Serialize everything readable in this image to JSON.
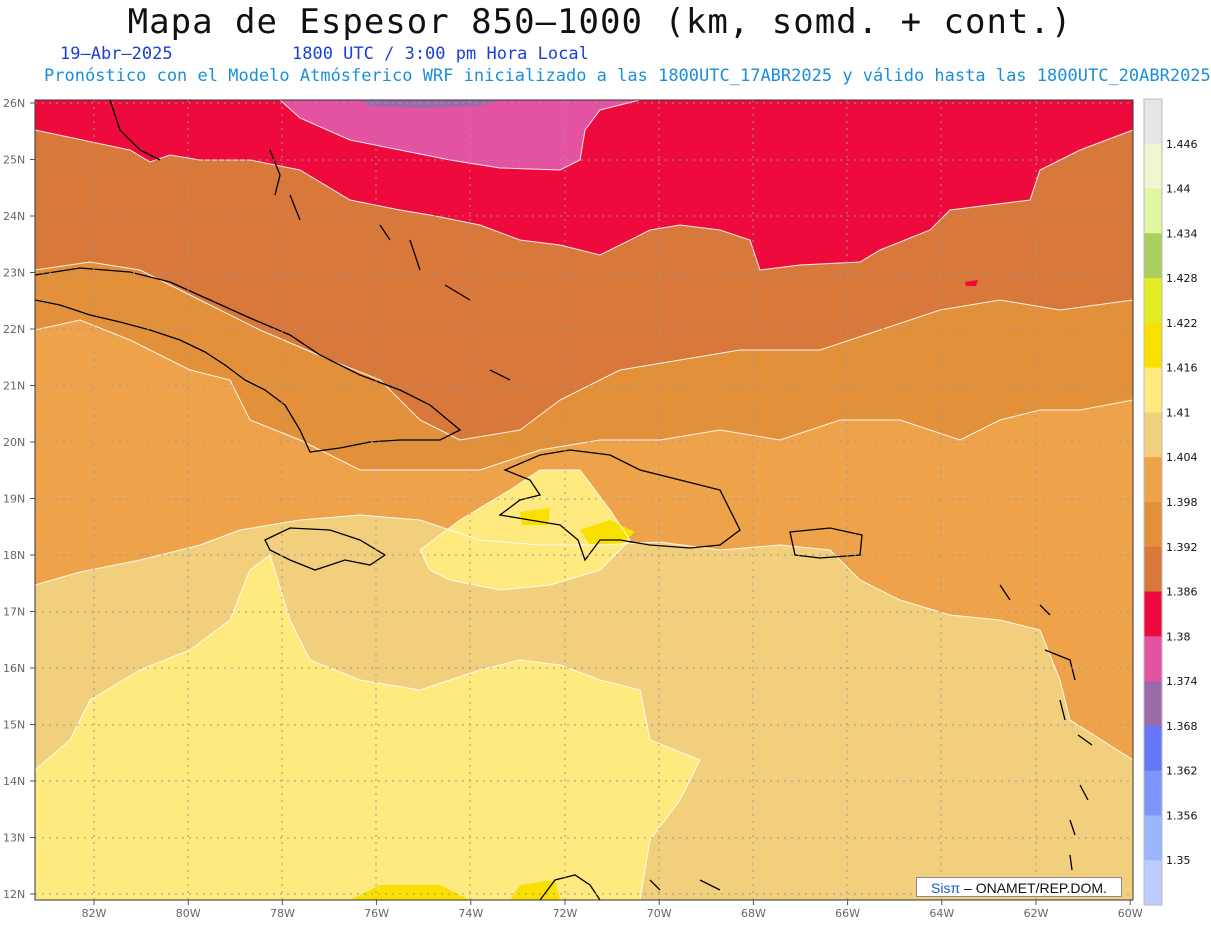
{
  "header": {
    "title": "Mapa de Espesor 850–1000 (km, somd. + cont.)",
    "date": "19–Abr–2025",
    "time": "1800 UTC / 3:00 pm Hora Local",
    "forecast": "Pronóstico con el Modelo Atmósferico WRF inicializado a las 1800UTC_17ABR2025 y válido hasta las  1800UTC_20ABR2025"
  },
  "map": {
    "lat_labels": [
      "26N",
      "25N",
      "24N",
      "23N",
      "22N",
      "21N",
      "20N",
      "19N",
      "18N",
      "17N",
      "16N",
      "15N",
      "14N",
      "13N",
      "12N"
    ],
    "lon_labels": [
      "82W",
      "80W",
      "78W",
      "76W",
      "74W",
      "72W",
      "70W",
      "68W",
      "66W",
      "64W",
      "62W",
      "60W"
    ],
    "lat_range": [
      12,
      26
    ],
    "lon_range": [
      -83.2,
      -60
    ]
  },
  "colorbar": {
    "levels": [
      {
        "label": "1.446",
        "color": "#e6e6e6"
      },
      {
        "label": "1.44",
        "color": "#f2f6d0"
      },
      {
        "label": "1.434",
        "color": "#e2f5a0"
      },
      {
        "label": "1.428",
        "color": "#a9cf5e"
      },
      {
        "label": "1.422",
        "color": "#e2ec22"
      },
      {
        "label": "1.416",
        "color": "#fae000"
      },
      {
        "label": "1.41",
        "color": "#feea7e"
      },
      {
        "label": "1.404",
        "color": "#f2cf7c"
      },
      {
        "label": "1.398",
        "color": "#eea24a"
      },
      {
        "label": "1.392",
        "color": "#e2903a"
      },
      {
        "label": "1.386",
        "color": "#d8783a"
      },
      {
        "label": "1.38",
        "color": "#ee0a3c"
      },
      {
        "label": "1.374",
        "color": "#e452a2"
      },
      {
        "label": "1.368",
        "color": "#9a6aaa"
      },
      {
        "label": "1.362",
        "color": "#6476fa"
      },
      {
        "label": "1.356",
        "color": "#7e96fc"
      },
      {
        "label": "1.35",
        "color": "#9ab6fc"
      },
      {
        "label": "",
        "color": "#bcccfc"
      }
    ]
  },
  "credit": {
    "sis": "Sis",
    "pi": "π",
    "text": "– ONAMET/REP.DOM."
  },
  "colors": {
    "red": "#ee0a3c",
    "magenta": "#e452a2",
    "purple": "#9a6aaa",
    "dark_orange": "#d8783a",
    "orange": "#e2903a",
    "light_orange": "#eea24a",
    "tan": "#f2cf7c",
    "light_yellow": "#feea7e",
    "yellow": "#fae000"
  }
}
